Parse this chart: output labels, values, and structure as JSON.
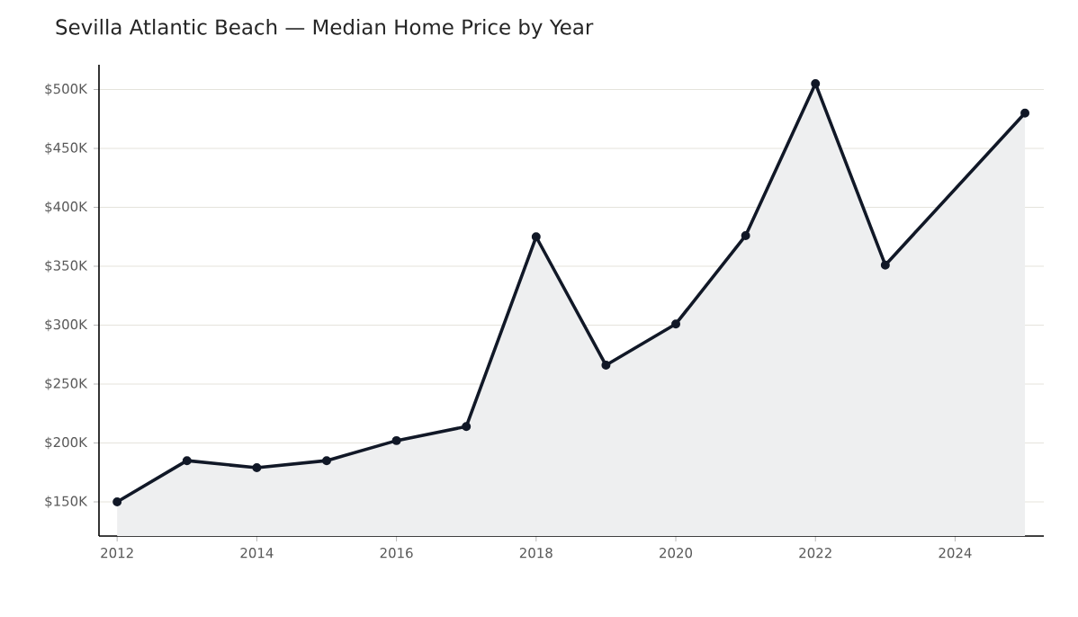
{
  "chart_data": {
    "type": "area",
    "title": "Sevilla Atlantic Beach — Median Home Price by Year",
    "x": [
      2012,
      2013,
      2014,
      2015,
      2016,
      2017,
      2018,
      2019,
      2020,
      2021,
      2022,
      2023,
      2025
    ],
    "series": [
      {
        "color": "#111827",
        "values": [
          150,
          185,
          179,
          185,
          202,
          214,
          375,
          266,
          301,
          376,
          505,
          351,
          480
        ]
      }
    ],
    "xlim": [
      2011.74,
      2025.27
    ],
    "ylim": [
      121,
      521
    ],
    "xticks": [
      2012,
      2014,
      2016,
      2018,
      2020,
      2022,
      2024
    ],
    "yticks": [
      {
        "value": 150,
        "label": "$150K"
      },
      {
        "value": 200,
        "label": "$200K"
      },
      {
        "value": 250,
        "label": "$250K"
      },
      {
        "value": 300,
        "label": "$300K"
      },
      {
        "value": 350,
        "label": "$350K"
      },
      {
        "value": 400,
        "label": "$400K"
      },
      {
        "value": 450,
        "label": "$450K"
      },
      {
        "value": 500,
        "label": "$500K"
      }
    ],
    "grid": "y",
    "marker": "circle"
  }
}
